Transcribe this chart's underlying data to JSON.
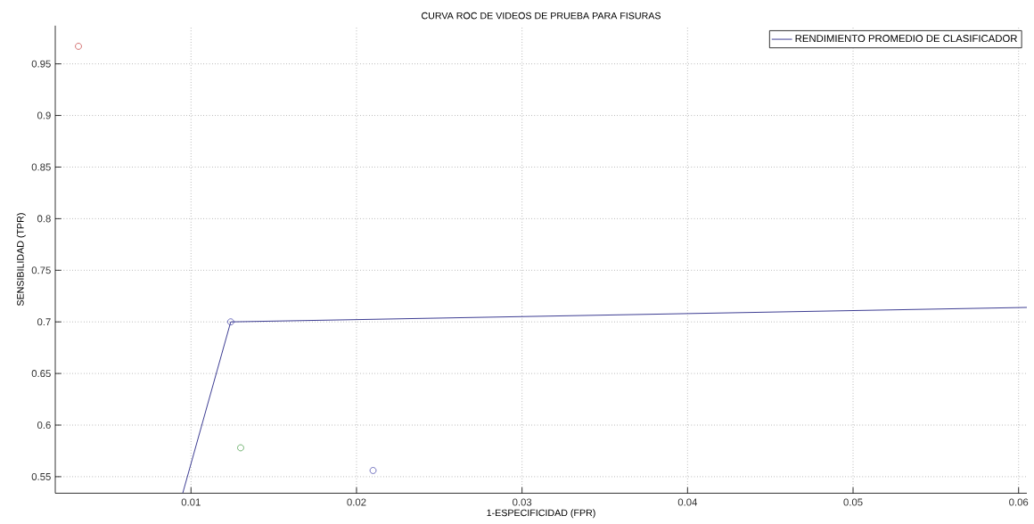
{
  "chart_data": {
    "type": "scatter",
    "title": "CURVA ROC DE VIDEOS DE PRUEBA PARA FISURAS",
    "xlabel": "1-ESPECIFICIDAD (FPR)",
    "ylabel": "SENSIBILIDAD (TPR)",
    "series": [
      {
        "name": "RENDIMIENTO PROMEDIO DE CLASIFICADOR",
        "type": "line",
        "marker": "none",
        "color": "#2e2e8a",
        "x": [
          0.0095,
          0.0124,
          0.0605
        ],
        "values": [
          0.534,
          0.7,
          0.714
        ]
      },
      {
        "marker": "circle",
        "colors": [
          "#c03030",
          "#3030a0",
          "#309030",
          "#3030a0"
        ],
        "x": [
          0.0032,
          0.0124,
          0.013,
          0.021
        ],
        "values": [
          0.967,
          0.7,
          0.578,
          0.556
        ]
      }
    ],
    "xlim": [
      0.0018,
      0.0605
    ],
    "ylim": [
      0.534,
      0.987
    ],
    "xticks": [
      0.01,
      0.02,
      0.03,
      0.04,
      0.05,
      0.06
    ],
    "yticks": [
      0.55,
      0.6,
      0.65,
      0.7,
      0.75,
      0.8,
      0.85,
      0.9,
      0.95
    ],
    "grid": true,
    "legend": "top right"
  }
}
